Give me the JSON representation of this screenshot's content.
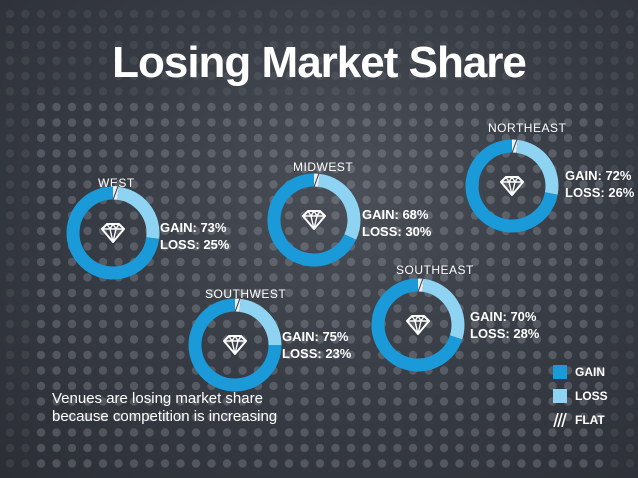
{
  "title": "Losing Market Share",
  "colors": {
    "gain": "#1a9ad9",
    "loss": "#8fd3f2",
    "flat": "#ffffff",
    "text": "#ffffff"
  },
  "chart_data": {
    "type": "pie",
    "subtype": "donut",
    "title": "Losing Market Share",
    "legend": {
      "placement": "bottom-right",
      "entries": [
        "GAIN",
        "LOSS",
        "FLAT"
      ]
    },
    "regions": [
      {
        "name": "WEST",
        "gain": 73,
        "loss": 25,
        "flat": 2,
        "gain_label": "GAIN: 73%",
        "loss_label": "LOSS: 25%"
      },
      {
        "name": "MIDWEST",
        "gain": 68,
        "loss": 30,
        "flat": 2,
        "gain_label": "GAIN: 68%",
        "loss_label": "LOSS: 30%"
      },
      {
        "name": "NORTHEAST",
        "gain": 72,
        "loss": 26,
        "flat": 2,
        "gain_label": "GAIN: 72%",
        "loss_label": "LOSS: 26%"
      },
      {
        "name": "SOUTHWEST",
        "gain": 75,
        "loss": 23,
        "flat": 2,
        "gain_label": "GAIN: 75%",
        "loss_label": "LOSS: 23%"
      },
      {
        "name": "SOUTHEAST",
        "gain": 70,
        "loss": 28,
        "flat": 2,
        "gain_label": "GAIN: 70%",
        "loss_label": "LOSS: 28%"
      }
    ]
  },
  "legend_labels": {
    "gain": "GAIN",
    "loss": "LOSS",
    "flat": "FLAT"
  },
  "caption": "Venues are losing market share because competition is increasing",
  "icons": {
    "center": "diamond-icon"
  }
}
